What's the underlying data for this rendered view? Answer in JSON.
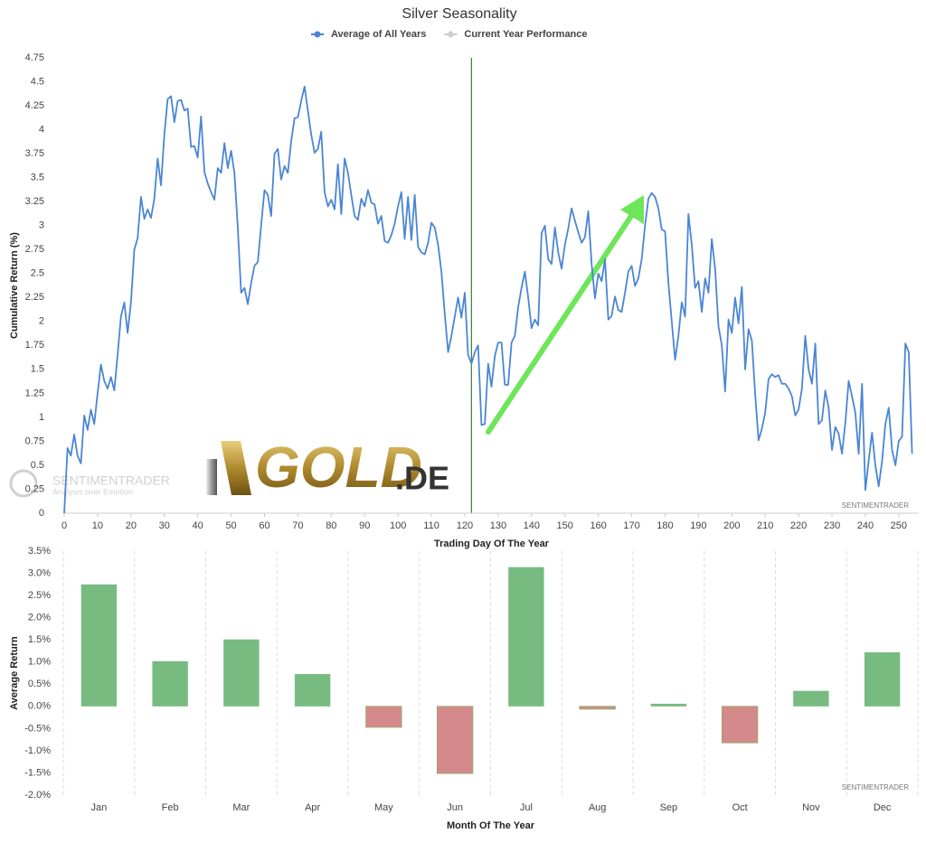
{
  "chart_data": [
    {
      "type": "line",
      "title": "Silver Seasonality",
      "xlabel": "Trading Day Of The Year",
      "ylabel": "Cumulative Return (%)",
      "watermark": "SENTIMENTRADER",
      "x": [
        0,
        1,
        2,
        3,
        4,
        5,
        6,
        7,
        8,
        9,
        10,
        11,
        12,
        13,
        14,
        15,
        16,
        17,
        18,
        19,
        20,
        21,
        22,
        23,
        24,
        25,
        26,
        27,
        28,
        29,
        30,
        31,
        32,
        33,
        34,
        35,
        36,
        37,
        38,
        39,
        40,
        41,
        42,
        43,
        44,
        45,
        46,
        47,
        48,
        49,
        50,
        51,
        52,
        53,
        54,
        55,
        56,
        57,
        58,
        59,
        60,
        61,
        62,
        63,
        64,
        65,
        66,
        67,
        68,
        69,
        70,
        71,
        72,
        73,
        74,
        75,
        76,
        77,
        78,
        79,
        80,
        81,
        82,
        83,
        84,
        85,
        86,
        87,
        88,
        89,
        90,
        91,
        92,
        93,
        94,
        95,
        96,
        97,
        98,
        99,
        100,
        101,
        102,
        103,
        104,
        105,
        106,
        107,
        108,
        109,
        110,
        111,
        112,
        113,
        114,
        115,
        116,
        117,
        118,
        119,
        120,
        121,
        122,
        123,
        124,
        125,
        126,
        127,
        128,
        129,
        130,
        131,
        132,
        133,
        134,
        135,
        136,
        137,
        138,
        139,
        140,
        141,
        142,
        143,
        144,
        145,
        146,
        147,
        148,
        149,
        150,
        151,
        152,
        153,
        154,
        155,
        156,
        157,
        158,
        159,
        160,
        161,
        162,
        163,
        164,
        165,
        166,
        167,
        168,
        169,
        170,
        171,
        172,
        173,
        174,
        175,
        176,
        177,
        178,
        179,
        180,
        181,
        182,
        183,
        184,
        185,
        186,
        187,
        188,
        189,
        190,
        191,
        192,
        193,
        194,
        195,
        196,
        197,
        198,
        199,
        200,
        201,
        202,
        203,
        204,
        205,
        206,
        207,
        208,
        209,
        210,
        211,
        212,
        213,
        214,
        215,
        216,
        217,
        218,
        219,
        220,
        221,
        222,
        223,
        224,
        225,
        226,
        227,
        228,
        229,
        230,
        231,
        232,
        233,
        234,
        235,
        236,
        237,
        238,
        239,
        240,
        241,
        242,
        243,
        244,
        245,
        246,
        247,
        248,
        249,
        250,
        251,
        252,
        253,
        254
      ],
      "series": [
        {
          "name": "Average of All Years",
          "color": "#4a86d4",
          "values": [
            0.0,
            0.68,
            0.6,
            0.82,
            0.6,
            0.52,
            1.02,
            0.87,
            1.08,
            0.93,
            1.25,
            1.55,
            1.38,
            1.3,
            1.42,
            1.28,
            1.65,
            2.05,
            2.2,
            1.88,
            2.2,
            2.75,
            2.87,
            3.3,
            3.07,
            3.17,
            3.08,
            3.28,
            3.7,
            3.42,
            3.95,
            4.32,
            4.35,
            4.08,
            4.3,
            4.31,
            4.2,
            4.22,
            3.82,
            3.83,
            3.71,
            4.14,
            3.56,
            3.44,
            3.35,
            3.27,
            3.6,
            3.55,
            3.86,
            3.6,
            3.78,
            3.55,
            2.98,
            2.3,
            2.35,
            2.18,
            2.4,
            2.58,
            2.62,
            3.0,
            3.37,
            3.32,
            3.1,
            3.75,
            3.8,
            3.48,
            3.62,
            3.55,
            3.88,
            4.12,
            4.13,
            4.3,
            4.45,
            4.2,
            3.95,
            3.76,
            3.8,
            3.98,
            3.35,
            3.2,
            3.27,
            3.17,
            3.64,
            3.12,
            3.7,
            3.55,
            3.32,
            3.1,
            3.06,
            3.28,
            3.2,
            3.37,
            3.24,
            3.22,
            3.02,
            3.1,
            2.84,
            2.82,
            2.9,
            3.02,
            3.2,
            3.35,
            2.86,
            3.3,
            2.85,
            3.32,
            2.78,
            2.72,
            2.7,
            2.82,
            3.03,
            2.98,
            2.8,
            2.52,
            2.08,
            1.68,
            1.85,
            2.05,
            2.25,
            2.04,
            2.3,
            1.65,
            1.56,
            1.68,
            1.75,
            0.92,
            0.93,
            1.56,
            1.32,
            1.64,
            1.78,
            1.78,
            1.34,
            1.34,
            1.78,
            1.85,
            2.15,
            2.35,
            2.52,
            2.25,
            1.93,
            2.02,
            1.96,
            2.92,
            3.0,
            2.65,
            2.6,
            2.98,
            2.72,
            2.55,
            2.8,
            2.97,
            3.18,
            3.05,
            2.93,
            2.82,
            2.88,
            3.15,
            2.6,
            2.24,
            2.5,
            2.42,
            2.65,
            2.02,
            2.06,
            2.26,
            2.12,
            2.1,
            2.3,
            2.52,
            2.58,
            2.37,
            2.45,
            2.65,
            3.0,
            3.28,
            3.34,
            3.3,
            3.18,
            2.96,
            2.94,
            2.4,
            2.0,
            1.6,
            1.85,
            2.2,
            2.05,
            3.12,
            2.8,
            2.35,
            2.42,
            2.1,
            2.45,
            2.3,
            2.86,
            2.55,
            1.95,
            1.75,
            1.27,
            2.02,
            1.88,
            2.25,
            1.98,
            2.36,
            1.5,
            1.92,
            1.8,
            1.24,
            0.76,
            0.88,
            1.05,
            1.4,
            1.45,
            1.42,
            1.44,
            1.35,
            1.35,
            1.3,
            1.22,
            1.02,
            1.08,
            1.3,
            1.85,
            1.5,
            1.35,
            1.77,
            0.93,
            0.97,
            1.28,
            1.1,
            0.66,
            0.9,
            0.83,
            0.62,
            0.94,
            1.38,
            1.22,
            1.05,
            0.62,
            1.35,
            0.24,
            0.55,
            0.84,
            0.5,
            0.28,
            0.54,
            0.93,
            1.1,
            0.66,
            0.5,
            0.75,
            0.8,
            1.77,
            1.68,
            0.62
          ]
        }
      ],
      "inactive_legend": [
        {
          "name": "Current Year Performance",
          "color": "#cccccc"
        }
      ],
      "marker_x": 122,
      "marker_color": "#3d7a3d",
      "xlim": [
        0,
        256
      ],
      "xticks": [
        0,
        10,
        20,
        30,
        40,
        50,
        60,
        70,
        80,
        90,
        100,
        110,
        120,
        130,
        140,
        150,
        160,
        170,
        180,
        190,
        200,
        210,
        220,
        230,
        240,
        250
      ],
      "ylim": [
        0,
        4.75
      ],
      "yticks": [
        0,
        0.25,
        0.5,
        0.75,
        1,
        1.25,
        1.5,
        1.75,
        2,
        2.25,
        2.5,
        2.75,
        3,
        3.25,
        3.5,
        3.75,
        4,
        4.25,
        4.5,
        4.75
      ],
      "grid": false
    },
    {
      "type": "bar",
      "xlabel": "Month Of The Year",
      "ylabel": "Average Return",
      "watermark": "SENTIMENTRADER",
      "categories": [
        "Jan",
        "Feb",
        "Mar",
        "Apr",
        "May",
        "Jun",
        "Jul",
        "Aug",
        "Sep",
        "Oct",
        "Nov",
        "Dec"
      ],
      "values": [
        2.75,
        1.02,
        1.51,
        0.73,
        -0.47,
        -1.51,
        3.14,
        -0.06,
        0.06,
        -0.82,
        0.35,
        1.22
      ],
      "positive_color": "#77bb80",
      "negative_color": "#d48a8a",
      "ylim": [
        -2,
        3.5
      ],
      "yticks": [
        {
          "value": -2,
          "label": "-2.0%"
        },
        {
          "value": -1.5,
          "label": "-1.5%"
        },
        {
          "value": -1,
          "label": "-1.0%"
        },
        {
          "value": -0.5,
          "label": "-0.5%"
        },
        {
          "value": 0,
          "label": "0.0%"
        },
        {
          "value": 0.5,
          "label": "0.5%"
        },
        {
          "value": 1,
          "label": "1.0%"
        },
        {
          "value": 1.5,
          "label": "1.5%"
        },
        {
          "value": 2,
          "label": "2.0%"
        },
        {
          "value": 2.5,
          "label": "2.5%"
        },
        {
          "value": 3,
          "label": "3.0%"
        },
        {
          "value": 3.5,
          "label": "3.5%"
        }
      ],
      "vertical_grid": true
    }
  ],
  "logos": {
    "sentimentrader": {
      "name": "SENTIMENTRADER",
      "tagline": "Analysis over Emotion"
    },
    "gold": {
      "word": "GOLD",
      "suffix": ".DE"
    }
  }
}
